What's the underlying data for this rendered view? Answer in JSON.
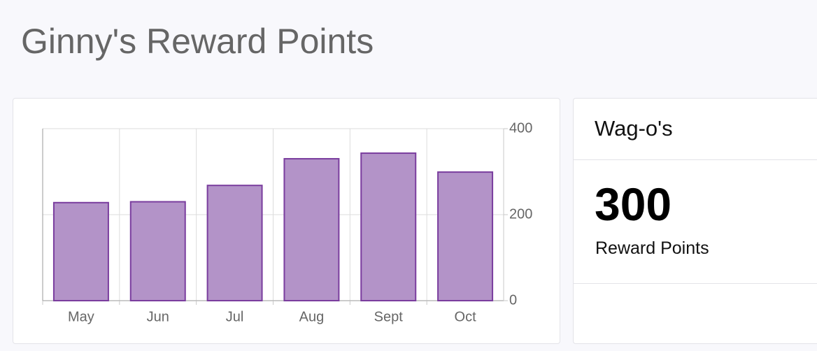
{
  "header": {
    "title": "Ginny's Reward Points"
  },
  "chart_data": {
    "type": "bar",
    "categories": [
      "May",
      "Jun",
      "Jul",
      "Aug",
      "Sept",
      "Oct"
    ],
    "values": [
      228,
      230,
      268,
      330,
      343,
      299
    ],
    "color": "#b393c8",
    "border_color": "#7a3d9e",
    "ylim": [
      0,
      400
    ],
    "yticks": [
      0,
      200,
      400
    ],
    "grid": true
  },
  "card": {
    "title": "Wag-o's",
    "value": 300,
    "label": "Reward Points"
  }
}
